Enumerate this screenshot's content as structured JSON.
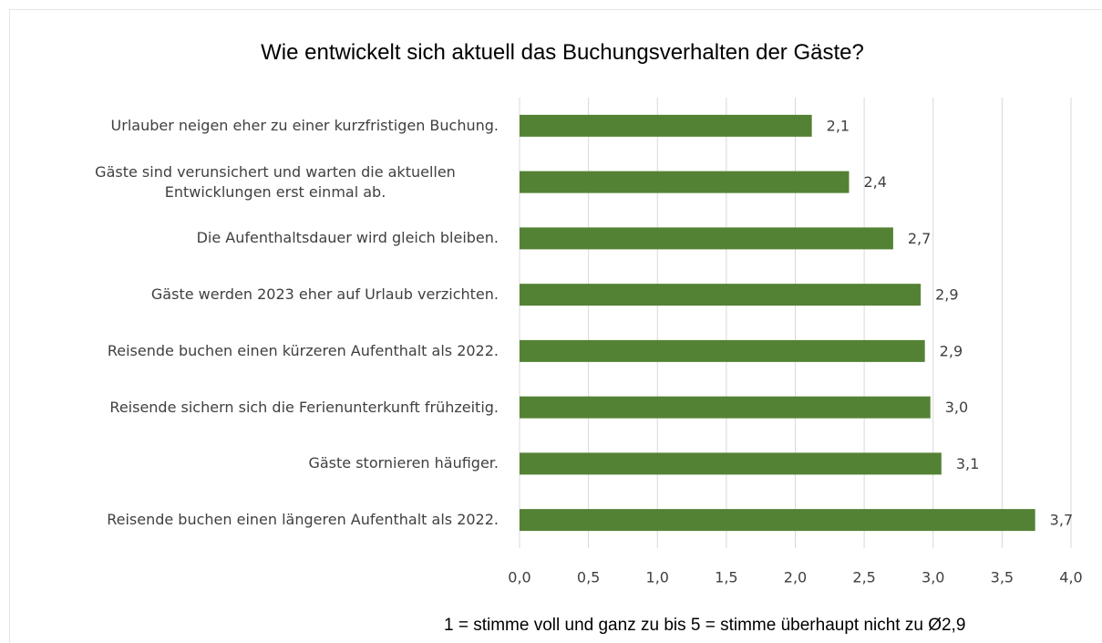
{
  "chart_data": {
    "type": "bar",
    "orientation": "horizontal",
    "title": "Wie entwickelt sich aktuell das Buchungsverhalten der Gäste?",
    "categories": [
      "Urlauber neigen eher zu einer kurzfristigen Buchung.",
      "Gäste sind verunsichert und warten die aktuellen Entwicklungen erst einmal ab.",
      "Die Aufenthaltsdauer wird gleich bleiben.",
      "Gäste werden 2023 eher auf Urlaub verzichten.",
      "Reisende buchen einen kürzeren Aufenthalt als 2022.",
      "Reisende sichern sich die Ferienunterkunft frühzeitig.",
      "Gäste stornieren häufiger.",
      "Reisende buchen einen längeren Aufenthalt als 2022."
    ],
    "values": [
      2.12,
      2.39,
      2.71,
      2.91,
      2.94,
      2.98,
      3.06,
      3.74
    ],
    "value_labels": [
      "2,1",
      "2,4",
      "2,7",
      "2,9",
      "2,9",
      "3,0",
      "3,1",
      "3,7"
    ],
    "color": "#548235",
    "xlim": [
      0,
      4
    ],
    "xticks": [
      {
        "value": 0,
        "label": "0,0"
      },
      {
        "value": 0.5,
        "label": "0,5"
      },
      {
        "value": 1,
        "label": "1,0"
      },
      {
        "value": 1.5,
        "label": "1,5"
      },
      {
        "value": 2,
        "label": "2,0"
      },
      {
        "value": 2.5,
        "label": "2,5"
      },
      {
        "value": 3,
        "label": "3,0"
      },
      {
        "value": 3.5,
        "label": "3,5"
      },
      {
        "value": 4,
        "label": "4,0"
      }
    ],
    "grid": true,
    "annotation": "1 = stimme voll und ganz zu bis 5 = stimme überhaupt nicht zu Ø2,9"
  }
}
